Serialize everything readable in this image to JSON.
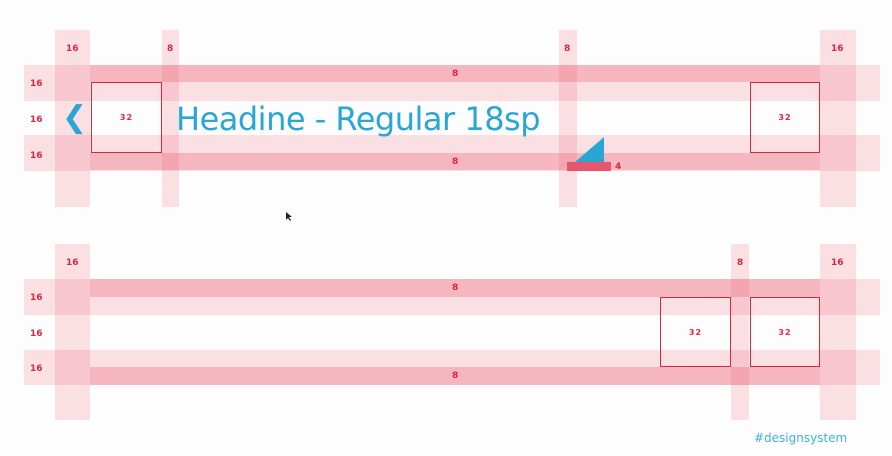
{
  "headline": "Headine - Regular 18sp",
  "hashtag": "#designsystem",
  "icons": {
    "back": "❮",
    "overflow_corner": "triangle"
  },
  "top_bar": {
    "column_labels": {
      "left_margin": "16",
      "nav_gap": "8",
      "title_gap": "8",
      "right_margin": "16"
    },
    "row_labels": [
      "16",
      "16",
      "16"
    ],
    "band_labels": {
      "top": "8",
      "bottom": "8"
    },
    "nav_box_label": "32",
    "action_box_label": "32",
    "baseline_label": "4"
  },
  "bottom_bar": {
    "column_labels": {
      "left_margin": "16",
      "action_gap": "8",
      "right_margin": "16"
    },
    "row_labels": [
      "16",
      "16",
      "16"
    ],
    "band_labels": {
      "top": "8",
      "bottom": "8"
    },
    "action_box_1_label": "32",
    "action_box_2_label": "32"
  },
  "colors": {
    "accent_blue": "#2aa6d6",
    "guide_red": "#d8273f",
    "guide_pink": "#ec5a6e"
  }
}
